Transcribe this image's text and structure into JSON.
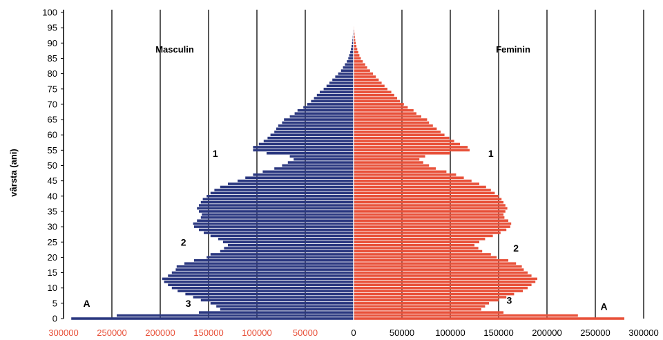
{
  "chart_data": {
    "type": "bar",
    "orientation": "horizontal-population-pyramid",
    "ylabel": "vârsta (ani)",
    "y_ticks": [
      0,
      5,
      10,
      15,
      20,
      25,
      30,
      35,
      40,
      45,
      50,
      55,
      60,
      65,
      70,
      75,
      80,
      85,
      90,
      95,
      100
    ],
    "x_ticks_male": [
      "300000",
      "250000",
      "200000",
      "150000",
      "100000",
      "50000"
    ],
    "x_ticks_female": [
      "0",
      "50000",
      "100000",
      "150000",
      "200000",
      "250000",
      "300000"
    ],
    "xlim": [
      -300000,
      300000
    ],
    "ylim": [
      0,
      100
    ],
    "grid": "vertical",
    "colors": {
      "male": "#2b3880",
      "female": "#e8513a",
      "male_ticks": "#e8513a",
      "female_ticks": "#000000"
    },
    "series": [
      {
        "name": "Masculin",
        "ages": [
          0,
          1,
          2,
          3,
          4,
          5,
          6,
          7,
          8,
          9,
          10,
          11,
          12,
          13,
          14,
          15,
          16,
          17,
          18,
          19,
          20,
          21,
          22,
          23,
          24,
          25,
          26,
          27,
          28,
          29,
          30,
          31,
          32,
          33,
          34,
          35,
          36,
          37,
          38,
          39,
          40,
          41,
          42,
          43,
          44,
          45,
          46,
          47,
          48,
          49,
          50,
          51,
          52,
          53,
          54,
          55,
          56,
          57,
          58,
          59,
          60,
          61,
          62,
          63,
          64,
          65,
          66,
          67,
          68,
          69,
          70,
          71,
          72,
          73,
          74,
          75,
          76,
          77,
          78,
          79,
          80,
          81,
          82,
          83,
          84,
          85,
          86,
          87,
          88,
          89,
          90,
          91,
          92,
          93,
          94,
          95,
          96,
          97,
          98,
          99,
          100
        ],
        "values": [
          292000,
          245000,
          160000,
          138000,
          142000,
          148000,
          158000,
          166000,
          174000,
          182000,
          188000,
          192000,
          196000,
          198000,
          192000,
          188000,
          184000,
          183000,
          175000,
          165000,
          152000,
          148000,
          138000,
          134000,
          130000,
          135000,
          140000,
          148000,
          155000,
          160000,
          165000,
          166000,
          162000,
          158000,
          157000,
          160000,
          162000,
          160000,
          158000,
          156000,
          152000,
          148000,
          144000,
          138000,
          130000,
          120000,
          112000,
          104000,
          94000,
          82000,
          74000,
          68000,
          62000,
          66000,
          90000,
          104000,
          104000,
          98000,
          93000,
          89000,
          86000,
          82000,
          80000,
          78000,
          74000,
          72000,
          66000,
          61000,
          58000,
          52000,
          48000,
          44000,
          41000,
          38000,
          35000,
          31000,
          28000,
          25000,
          22000,
          19000,
          16000,
          13000,
          11000,
          9000,
          7000,
          5500,
          4500,
          3500,
          2800,
          2100,
          1600,
          1200,
          900,
          700,
          500,
          350,
          250,
          150,
          100,
          60,
          30
        ]
      },
      {
        "name": "Feminin",
        "ages": [
          0,
          1,
          2,
          3,
          4,
          5,
          6,
          7,
          8,
          9,
          10,
          11,
          12,
          13,
          14,
          15,
          16,
          17,
          18,
          19,
          20,
          21,
          22,
          23,
          24,
          25,
          26,
          27,
          28,
          29,
          30,
          31,
          32,
          33,
          34,
          35,
          36,
          37,
          38,
          39,
          40,
          41,
          42,
          43,
          44,
          45,
          46,
          47,
          48,
          49,
          50,
          51,
          52,
          53,
          54,
          55,
          56,
          57,
          58,
          59,
          60,
          61,
          62,
          63,
          64,
          65,
          66,
          67,
          68,
          69,
          70,
          71,
          72,
          73,
          74,
          75,
          76,
          77,
          78,
          79,
          80,
          81,
          82,
          83,
          84,
          85,
          86,
          87,
          88,
          89,
          90,
          91,
          92,
          93,
          94,
          95,
          96,
          97,
          98,
          99,
          100
        ],
        "values": [
          280000,
          232000,
          155000,
          132000,
          136000,
          140000,
          150000,
          158000,
          166000,
          175000,
          180000,
          184000,
          188000,
          190000,
          184000,
          180000,
          176000,
          174000,
          168000,
          160000,
          148000,
          142000,
          133000,
          129000,
          125000,
          130000,
          136000,
          144000,
          152000,
          158000,
          162000,
          163000,
          160000,
          156000,
          155000,
          157000,
          159000,
          157000,
          155000,
          153000,
          150000,
          146000,
          142000,
          137000,
          130000,
          122000,
          114000,
          106000,
          96000,
          85000,
          78000,
          72000,
          68000,
          74000,
          100000,
          120000,
          118000,
          110000,
          104000,
          99000,
          94000,
          90000,
          86000,
          82000,
          78000,
          76000,
          70000,
          65000,
          62000,
          56000,
          52000,
          48000,
          45000,
          42000,
          39000,
          35000,
          32000,
          29000,
          26000,
          23000,
          20000,
          17000,
          14000,
          12000,
          9500,
          7500,
          6000,
          4800,
          3800,
          2900,
          2200,
          1700,
          1300,
          1000,
          750,
          500,
          350,
          220,
          140,
          80,
          40
        ]
      }
    ],
    "annotations": [
      {
        "text": "Masculin",
        "x": -185000,
        "y": 88
      },
      {
        "text": "Feminin",
        "x": 165000,
        "y": 88
      },
      {
        "text": "1",
        "x": -143000,
        "y": 54
      },
      {
        "text": "1",
        "x": 142000,
        "y": 54
      },
      {
        "text": "2",
        "x": -176000,
        "y": 25
      },
      {
        "text": "2",
        "x": 168000,
        "y": 23
      },
      {
        "text": "3",
        "x": -171000,
        "y": 5
      },
      {
        "text": "3",
        "x": 161000,
        "y": 6
      },
      {
        "text": "A",
        "x": -276000,
        "y": 5
      },
      {
        "text": "A",
        "x": 259000,
        "y": 4
      }
    ]
  }
}
